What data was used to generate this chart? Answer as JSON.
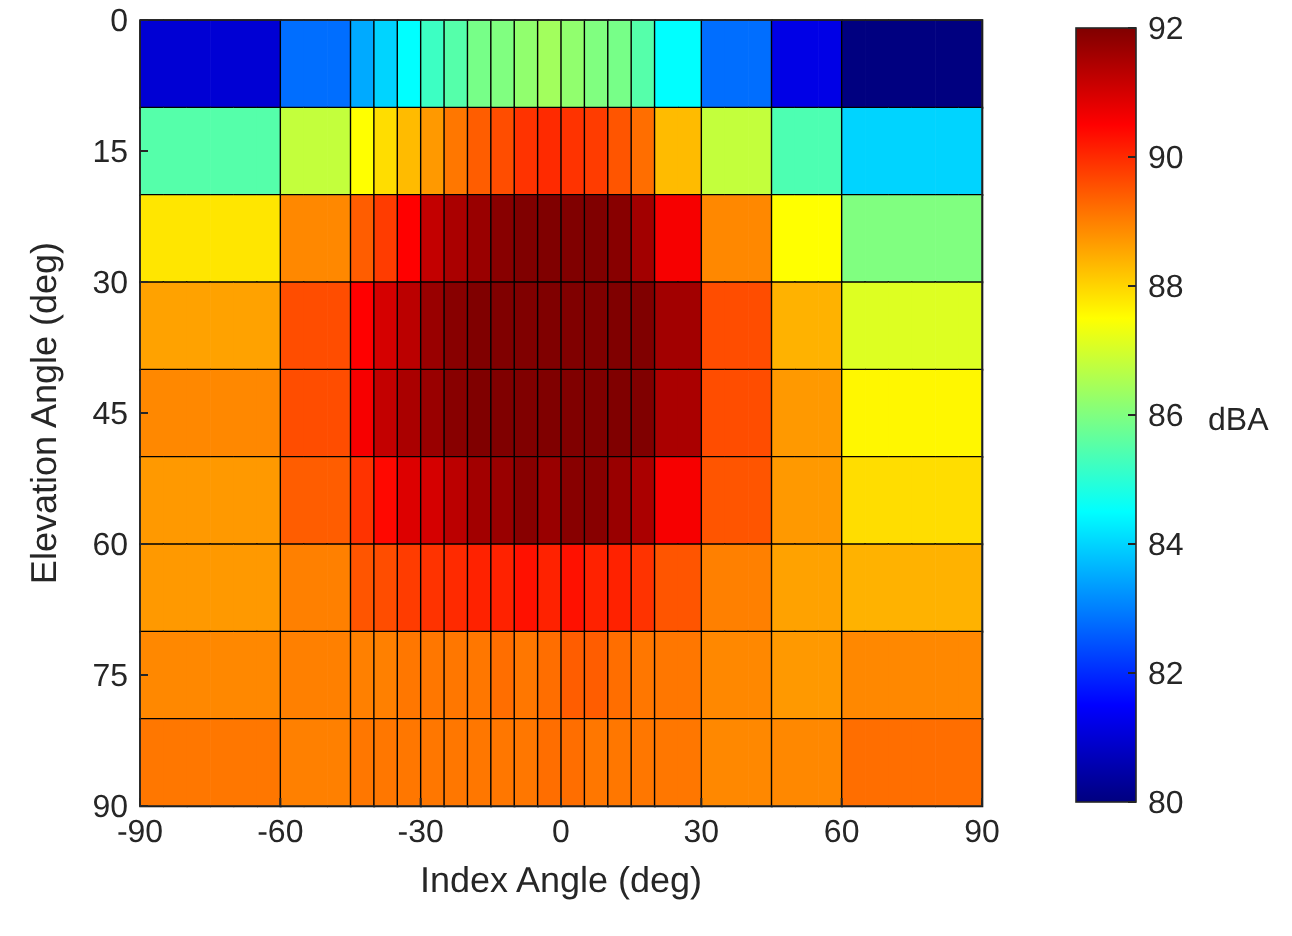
{
  "chart_data": {
    "type": "heatmap",
    "xlabel": "Index Angle (deg)",
    "ylabel": "Elevation Angle (deg)",
    "clabel": "dBA",
    "cells": [
      [
        81,
        81,
        81,
        81,
        81,
        81,
        82.8,
        82.8,
        82.8,
        83.5,
        84,
        84.5,
        85.2,
        85.5,
        85.9,
        86,
        86.2,
        86.4,
        86.2,
        86,
        85.9,
        85.5,
        84.5,
        84.5,
        82.8,
        82.8,
        82.8,
        81.2,
        81.2,
        81.2,
        80,
        80,
        80,
        80,
        80,
        80
      ],
      [
        85.5,
        85.5,
        85.5,
        85.5,
        85.5,
        85.5,
        86.8,
        86.8,
        86.8,
        87.5,
        87.9,
        88.3,
        88.7,
        89.1,
        89.4,
        89.6,
        89.9,
        90,
        89.9,
        89.8,
        89.5,
        89.2,
        88.3,
        88.3,
        86.8,
        86.8,
        86.8,
        85.4,
        85.4,
        85.4,
        84,
        84,
        84,
        84,
        84,
        84
      ],
      [
        87.8,
        87.8,
        87.8,
        87.8,
        87.8,
        87.8,
        88.9,
        88.9,
        88.9,
        89.4,
        89.8,
        90.5,
        91.2,
        91.5,
        91.7,
        91.9,
        92,
        92,
        92,
        92,
        91.9,
        91.6,
        90.6,
        90.6,
        88.9,
        88.9,
        88.9,
        87.5,
        87.5,
        87.5,
        86,
        86,
        86,
        86,
        86,
        86
      ],
      [
        88.6,
        88.6,
        88.6,
        88.6,
        88.6,
        88.6,
        89.6,
        89.6,
        89.6,
        90.5,
        91,
        91.3,
        91.7,
        91.9,
        92,
        92,
        92,
        92,
        92,
        92,
        92,
        92,
        91.6,
        91.6,
        89.6,
        89.6,
        89.6,
        88.4,
        88.4,
        88.4,
        87.1,
        87.1,
        87.1,
        87.1,
        87.1,
        87.1
      ],
      [
        88.9,
        88.9,
        88.9,
        88.9,
        88.9,
        88.9,
        89.6,
        89.6,
        89.6,
        90.6,
        91.2,
        91.5,
        91.7,
        91.9,
        92,
        92,
        92,
        92,
        92,
        92,
        92,
        92,
        91.5,
        91.5,
        89.6,
        89.6,
        89.6,
        88.7,
        88.7,
        88.7,
        87.6,
        87.6,
        87.6,
        87.6,
        87.6,
        87.6
      ],
      [
        88.7,
        88.7,
        88.7,
        88.7,
        88.7,
        88.7,
        89.4,
        89.4,
        89.4,
        89.9,
        90.4,
        90.9,
        91,
        91.3,
        91.6,
        91.7,
        91.9,
        91.7,
        91.9,
        91.9,
        91.7,
        91.5,
        90.6,
        90.6,
        89.5,
        89.5,
        89.5,
        88.7,
        88.7,
        88.7,
        87.9,
        87.9,
        87.9,
        87.9,
        87.9,
        87.9
      ],
      [
        88.7,
        88.7,
        88.7,
        88.7,
        88.7,
        88.7,
        89,
        89,
        89,
        89.5,
        89.6,
        89.8,
        89.9,
        90,
        90.1,
        90.1,
        90.3,
        90.1,
        90.3,
        90.1,
        90.1,
        89.9,
        89.5,
        89.5,
        89,
        89,
        89,
        88.6,
        88.6,
        88.6,
        88.4,
        88.4,
        88.4,
        88.4,
        88.4,
        88.4
      ],
      [
        88.9,
        88.9,
        88.9,
        88.9,
        88.9,
        88.9,
        89,
        89,
        89,
        89,
        89,
        89.1,
        89.1,
        89.1,
        89.1,
        89.2,
        89.1,
        89.2,
        89.4,
        89.4,
        89.2,
        89.1,
        89.1,
        89.1,
        88.9,
        88.9,
        88.9,
        88.7,
        88.7,
        88.7,
        88.9,
        88.9,
        88.9,
        88.9,
        88.9,
        88.9
      ],
      [
        89.1,
        89.1,
        89.1,
        89.1,
        89.1,
        89.1,
        89,
        89,
        89,
        89.1,
        89.1,
        89.1,
        89.1,
        89.1,
        89.1,
        89.1,
        89.1,
        89.2,
        89.2,
        89.1,
        89.1,
        89.1,
        89.1,
        89.1,
        88.9,
        88.9,
        88.9,
        88.9,
        88.9,
        88.9,
        89.2,
        89.2,
        89.2,
        89.2,
        89.2,
        89.2
      ]
    ],
    "xlim": [
      -90,
      90
    ],
    "xticks": [
      -90,
      -60,
      -30,
      0,
      30,
      60,
      90
    ],
    "ylim": [
      90,
      0
    ],
    "yticks": [
      0,
      15,
      30,
      45,
      60,
      75,
      90
    ],
    "clim": [
      80,
      92
    ],
    "cticks": [
      80,
      82,
      84,
      86,
      88,
      90,
      92
    ]
  }
}
